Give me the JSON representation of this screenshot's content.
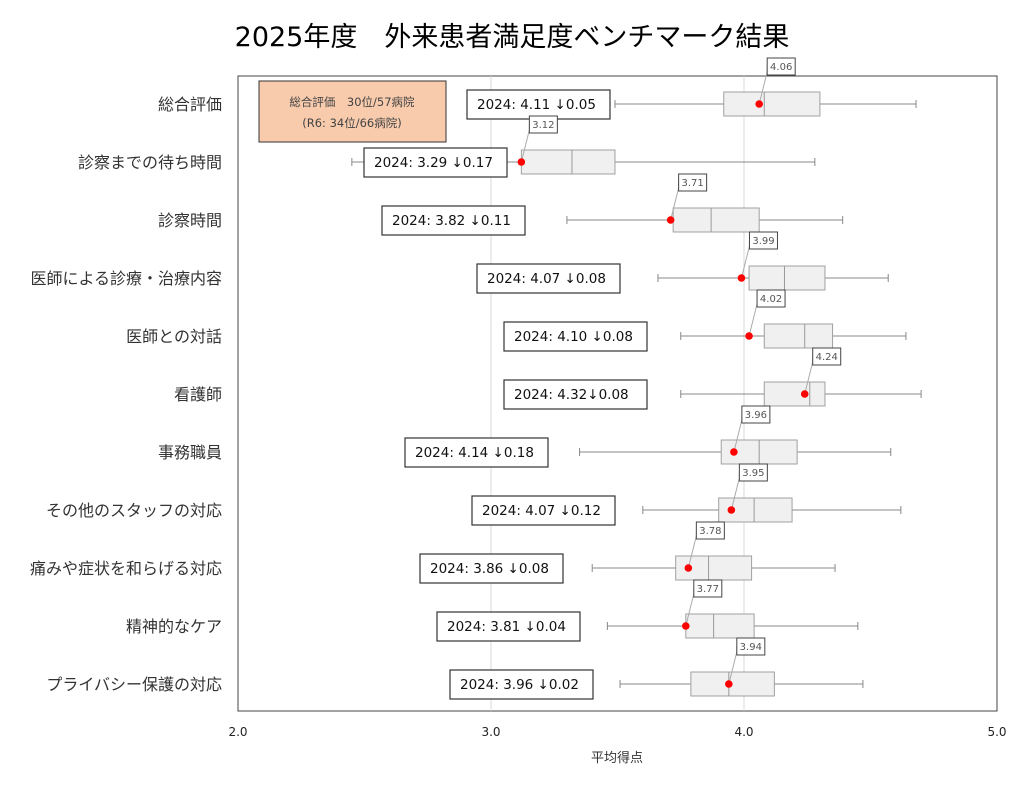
{
  "chart_data": {
    "type": "boxplot",
    "title": "2025年度　外来患者満足度ベンチマーク結果",
    "xlabel": "平均得点",
    "ylabel": "",
    "xlim": [
      2.0,
      5.0
    ],
    "xticks": [
      "2.0",
      "3.0",
      "4.0",
      "5.0"
    ],
    "grid": true,
    "summary_box": {
      "line1": "総合評価　30位/57病院",
      "line2": "(R6: 34位/66病院)",
      "color": "#f8cbad"
    },
    "colors": {
      "box_fill": "#f0f0f0",
      "box_stroke": "#a0a0a0",
      "own_point": "#ff0000"
    },
    "categories": [
      {
        "label": "総合評価",
        "min": 3.49,
        "q1": 3.92,
        "median": 4.08,
        "q3": 4.3,
        "max": 4.68,
        "own": 4.06,
        "own_label": "4.06",
        "comparison": "2024:  4.11 ↓0.05"
      },
      {
        "label": "診察までの待ち時間",
        "min": 2.45,
        "q1": 3.12,
        "median": 3.32,
        "q3": 3.49,
        "max": 4.28,
        "own": 3.12,
        "own_label": "3.12",
        "comparison": "2024:  3.29 ↓0.17"
      },
      {
        "label": "診察時間",
        "min": 3.3,
        "q1": 3.72,
        "median": 3.87,
        "q3": 4.06,
        "max": 4.39,
        "own": 3.71,
        "own_label": "3.71",
        "comparison": "2024:  3.82 ↓0.11"
      },
      {
        "label": "医師による診療・治療内容",
        "min": 3.66,
        "q1": 4.02,
        "median": 4.16,
        "q3": 4.32,
        "max": 4.57,
        "own": 3.99,
        "own_label": "3.99",
        "comparison": "2024:  4.07 ↓0.08"
      },
      {
        "label": "医師との対話",
        "min": 3.75,
        "q1": 4.08,
        "median": 4.24,
        "q3": 4.35,
        "max": 4.64,
        "own": 4.02,
        "own_label": "4.02",
        "comparison": "2024:  4.10 ↓0.08"
      },
      {
        "label": "看護師",
        "min": 3.75,
        "q1": 4.08,
        "median": 4.26,
        "q3": 4.32,
        "max": 4.7,
        "own": 4.24,
        "own_label": "4.24",
        "comparison": "2024:  4.32↓0.08"
      },
      {
        "label": "事務職員",
        "min": 3.35,
        "q1": 3.91,
        "median": 4.06,
        "q3": 4.21,
        "max": 4.58,
        "own": 3.96,
        "own_label": "3.96",
        "comparison": "2024:  4.14 ↓0.18"
      },
      {
        "label": "その他のスタッフの対応",
        "min": 3.6,
        "q1": 3.9,
        "median": 4.04,
        "q3": 4.19,
        "max": 4.62,
        "own": 3.95,
        "own_label": "3.95",
        "comparison": "2024:  4.07 ↓0.12"
      },
      {
        "label": "痛みや症状を和らげる対応",
        "min": 3.4,
        "q1": 3.73,
        "median": 3.86,
        "q3": 4.03,
        "max": 4.36,
        "own": 3.78,
        "own_label": "3.78",
        "comparison": "2024:  3.86 ↓0.08"
      },
      {
        "label": "精神的なケア",
        "min": 3.46,
        "q1": 3.77,
        "median": 3.88,
        "q3": 4.04,
        "max": 4.45,
        "own": 3.77,
        "own_label": "3.77",
        "comparison": "2024:  3.81 ↓0.04"
      },
      {
        "label": "プライバシー保護の対応",
        "min": 3.51,
        "q1": 3.79,
        "median": 3.94,
        "q3": 4.12,
        "max": 4.47,
        "own": 3.94,
        "own_label": "3.94",
        "comparison": "2024:  3.96 ↓0.02"
      }
    ]
  }
}
